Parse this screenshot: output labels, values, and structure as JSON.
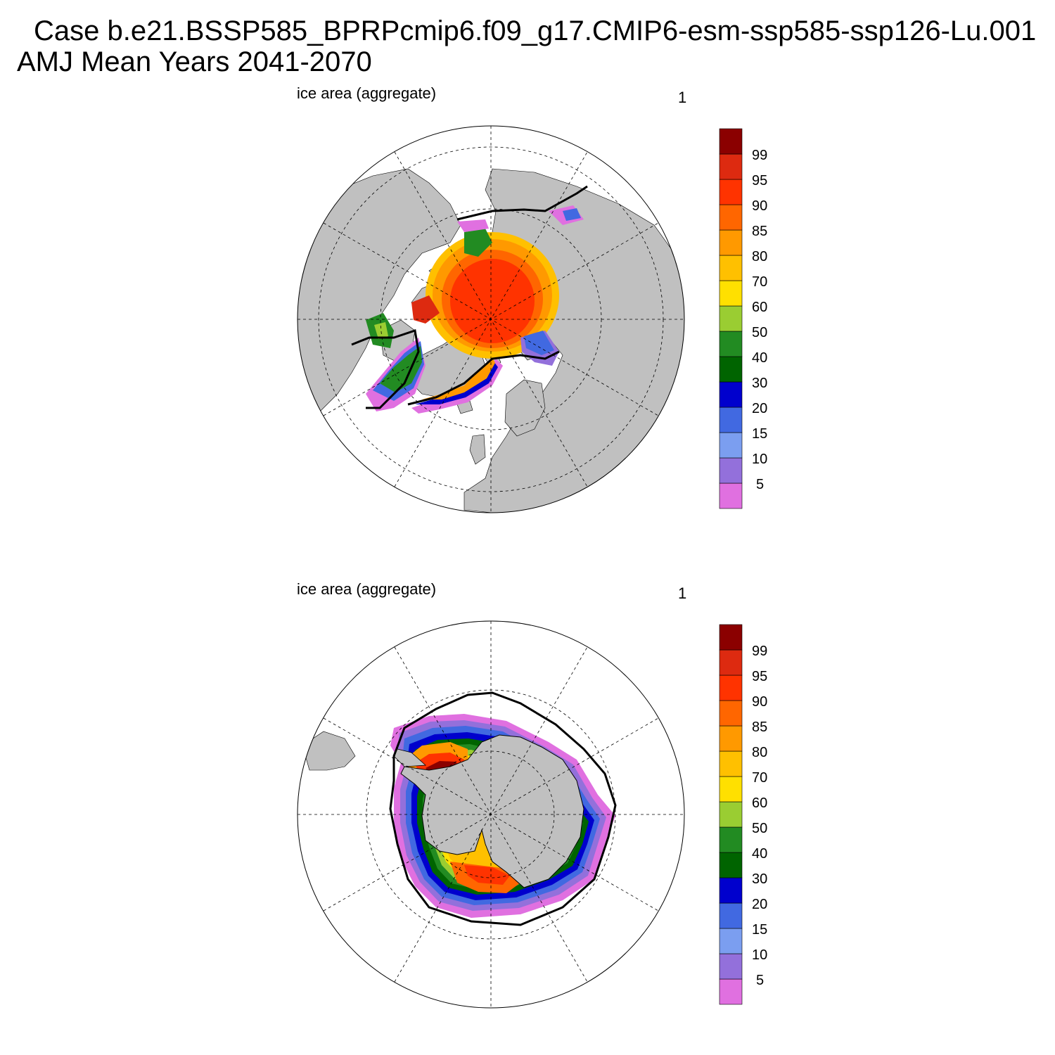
{
  "header": {
    "title_line1": "Case b.e21.BSSP585_BPRPcmip6.f09_g17.CMIP6-esm-ssp585-ssp126-Lu.001",
    "title_line2": "AMJ Mean   Years 2041-2070"
  },
  "panels": [
    {
      "hemisphere": "north",
      "variable_label": "ice area  (aggregate)",
      "units_label": "1"
    },
    {
      "hemisphere": "south",
      "variable_label": "ice area  (aggregate)",
      "units_label": "1"
    }
  ],
  "colorbar": {
    "colors": [
      "#e070e0",
      "#9370db",
      "#7b9ef0",
      "#4169e1",
      "#0000cd",
      "#006400",
      "#228b22",
      "#9acd32",
      "#ffe000",
      "#ffc000",
      "#ff9900",
      "#ff6600",
      "#ff3300",
      "#dd2a10",
      "#8b0000"
    ],
    "labels": [
      "5",
      "10",
      "15",
      "20",
      "30",
      "40",
      "50",
      "60",
      "70",
      "80",
      "85",
      "90",
      "95",
      "99"
    ]
  },
  "map_colors": {
    "land": "#c0c0c0",
    "ocean": "#ffffff",
    "outline": "#000000"
  }
}
